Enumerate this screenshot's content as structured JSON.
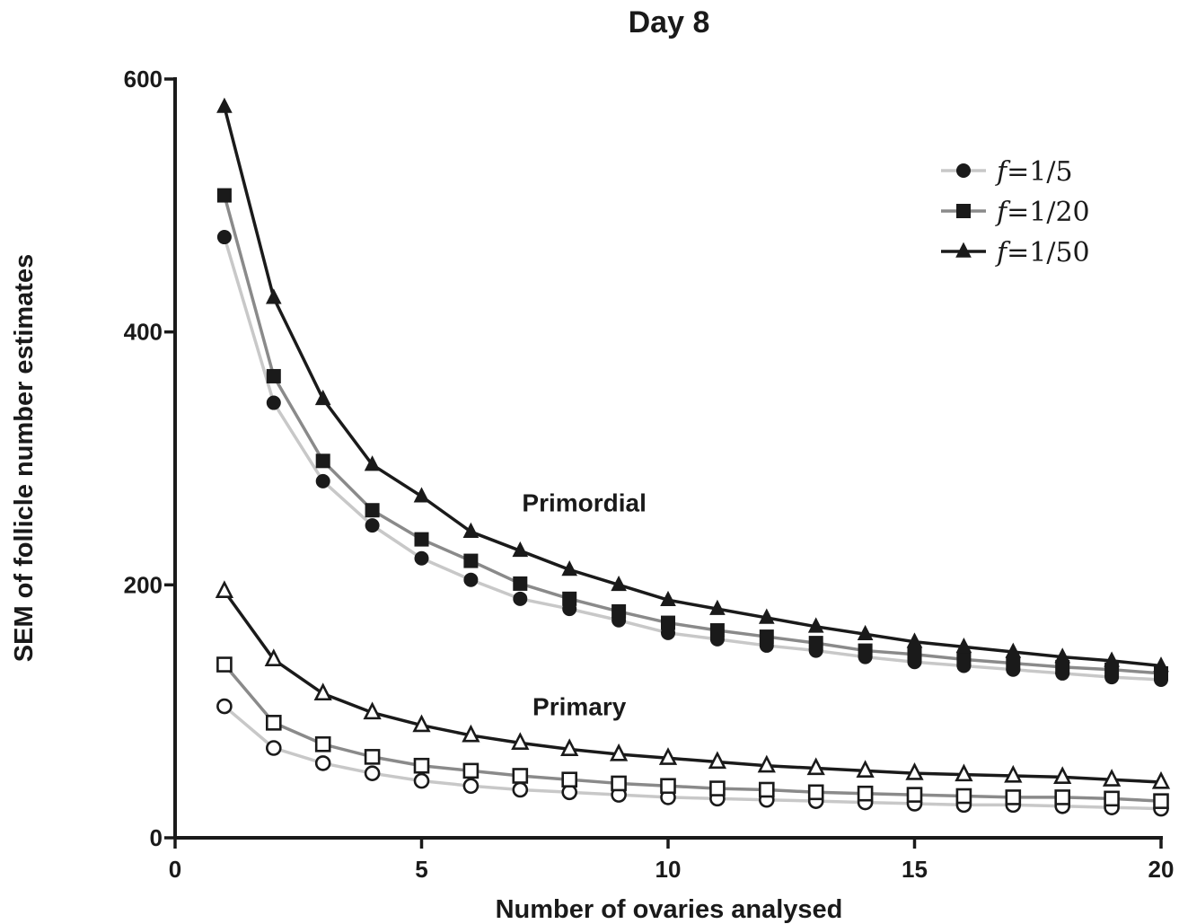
{
  "chart_data": {
    "type": "line",
    "title": "Day 8",
    "xlabel": "Number of ovaries analysed",
    "ylabel": "SEM of follicle number estimates",
    "xlim": [
      0,
      20
    ],
    "ylim": [
      0,
      600
    ],
    "xticks": [
      0,
      5,
      10,
      15,
      20
    ],
    "yticks": [
      0,
      200,
      400,
      600
    ],
    "x": [
      1,
      2,
      3,
      4,
      5,
      6,
      7,
      8,
      9,
      10,
      11,
      12,
      13,
      14,
      15,
      16,
      17,
      18,
      19,
      20
    ],
    "grid": false,
    "legend_position": "top-right",
    "legend": [
      {
        "prefix": "f",
        "label": "=1/5",
        "marker": "circle",
        "color": "#c8c8c8"
      },
      {
        "prefix": "f",
        "label": "=1/20",
        "marker": "square",
        "color": "#8a8a8a"
      },
      {
        "prefix": "f",
        "label": "=1/50",
        "marker": "triangle",
        "color": "#1a1a1a"
      }
    ],
    "annotations": [
      {
        "text": "Primordial",
        "x": 8.3,
        "y": 258
      },
      {
        "text": "Primary",
        "x": 8.2,
        "y": 97
      }
    ],
    "series": [
      {
        "group": "Primordial",
        "fraction": "f=1/5",
        "marker": "circle",
        "filled": true,
        "color": "#c8c8c8",
        "values": [
          475,
          344,
          282,
          247,
          221,
          204,
          189,
          181,
          172,
          162,
          157,
          152,
          148,
          143,
          139,
          136,
          133,
          130,
          127,
          125
        ]
      },
      {
        "group": "Primordial",
        "fraction": "f=1/20",
        "marker": "square",
        "filled": true,
        "color": "#8a8a8a",
        "values": [
          508,
          365,
          298,
          259,
          236,
          219,
          201,
          189,
          179,
          170,
          164,
          159,
          154,
          148,
          145,
          141,
          138,
          135,
          133,
          130
        ]
      },
      {
        "group": "Primordial",
        "fraction": "f=1/50",
        "marker": "triangle",
        "filled": true,
        "color": "#1a1a1a",
        "values": [
          578,
          427,
          347,
          295,
          270,
          242,
          227,
          212,
          200,
          188,
          181,
          174,
          167,
          161,
          155,
          151,
          147,
          143,
          140,
          136
        ]
      },
      {
        "group": "Primary",
        "fraction": "f=1/5",
        "marker": "circle",
        "filled": false,
        "color": "#c8c8c8",
        "values": [
          104,
          71,
          59,
          51,
          45,
          41,
          38,
          36,
          34,
          32,
          31,
          30,
          29,
          28,
          27,
          26,
          26,
          25,
          24,
          23
        ]
      },
      {
        "group": "Primary",
        "fraction": "f=1/20",
        "marker": "square",
        "filled": false,
        "color": "#8a8a8a",
        "values": [
          137,
          91,
          74,
          64,
          57,
          53,
          49,
          46,
          43,
          41,
          39,
          38,
          36,
          35,
          34,
          33,
          32,
          32,
          31,
          29
        ]
      },
      {
        "group": "Primary",
        "fraction": "f=1/50",
        "marker": "triangle",
        "filled": false,
        "color": "#1a1a1a",
        "values": [
          195,
          141,
          114,
          99,
          89,
          81,
          75,
          70,
          66,
          63,
          60,
          57,
          55,
          53,
          51,
          50,
          49,
          48,
          46,
          44
        ]
      }
    ]
  }
}
